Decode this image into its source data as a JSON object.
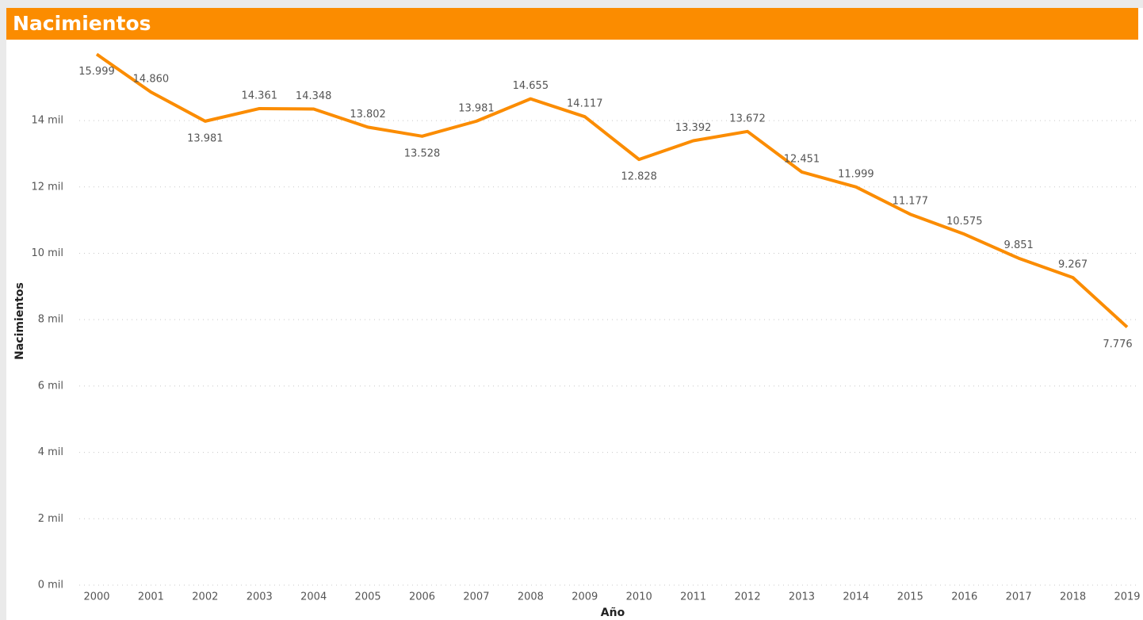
{
  "chart_data": {
    "type": "line",
    "title": "Nacimientos",
    "x_label": "Año",
    "y_label": "Nacimientos",
    "categories": [
      "2000",
      "2001",
      "2002",
      "2003",
      "2004",
      "2005",
      "2006",
      "2007",
      "2008",
      "2009",
      "2010",
      "2011",
      "2012",
      "2013",
      "2014",
      "2015",
      "2016",
      "2017",
      "2018",
      "2019"
    ],
    "series": [
      {
        "name": "Nacimientos",
        "color": "#fb8c00",
        "values": [
          15999,
          14860,
          13981,
          14361,
          14348,
          13802,
          13528,
          13981,
          14655,
          14117,
          12828,
          13392,
          13672,
          12451,
          11999,
          11177,
          10575,
          9851,
          9267,
          7776
        ],
        "value_labels": [
          "15.999",
          "14.860",
          "13.981",
          "14.361",
          "14.348",
          "13.802",
          "13.528",
          "13.981",
          "14.655",
          "14.117",
          "12.828",
          "13.392",
          "13.672",
          "12.451",
          "11.999",
          "11.177",
          "10.575",
          "9.851",
          "9.267",
          "7.776"
        ]
      }
    ],
    "ylim": [
      0,
      16200
    ],
    "yticks": [
      {
        "value": 0,
        "label": "0 mil"
      },
      {
        "value": 2000,
        "label": "2 mil"
      },
      {
        "value": 4000,
        "label": "4 mil"
      },
      {
        "value": 6000,
        "label": "6 mil"
      },
      {
        "value": 8000,
        "label": "8 mil"
      },
      {
        "value": 10000,
        "label": "10 mil"
      },
      {
        "value": 12000,
        "label": "12 mil"
      },
      {
        "value": 14000,
        "label": "14 mil"
      }
    ],
    "grid": true
  }
}
